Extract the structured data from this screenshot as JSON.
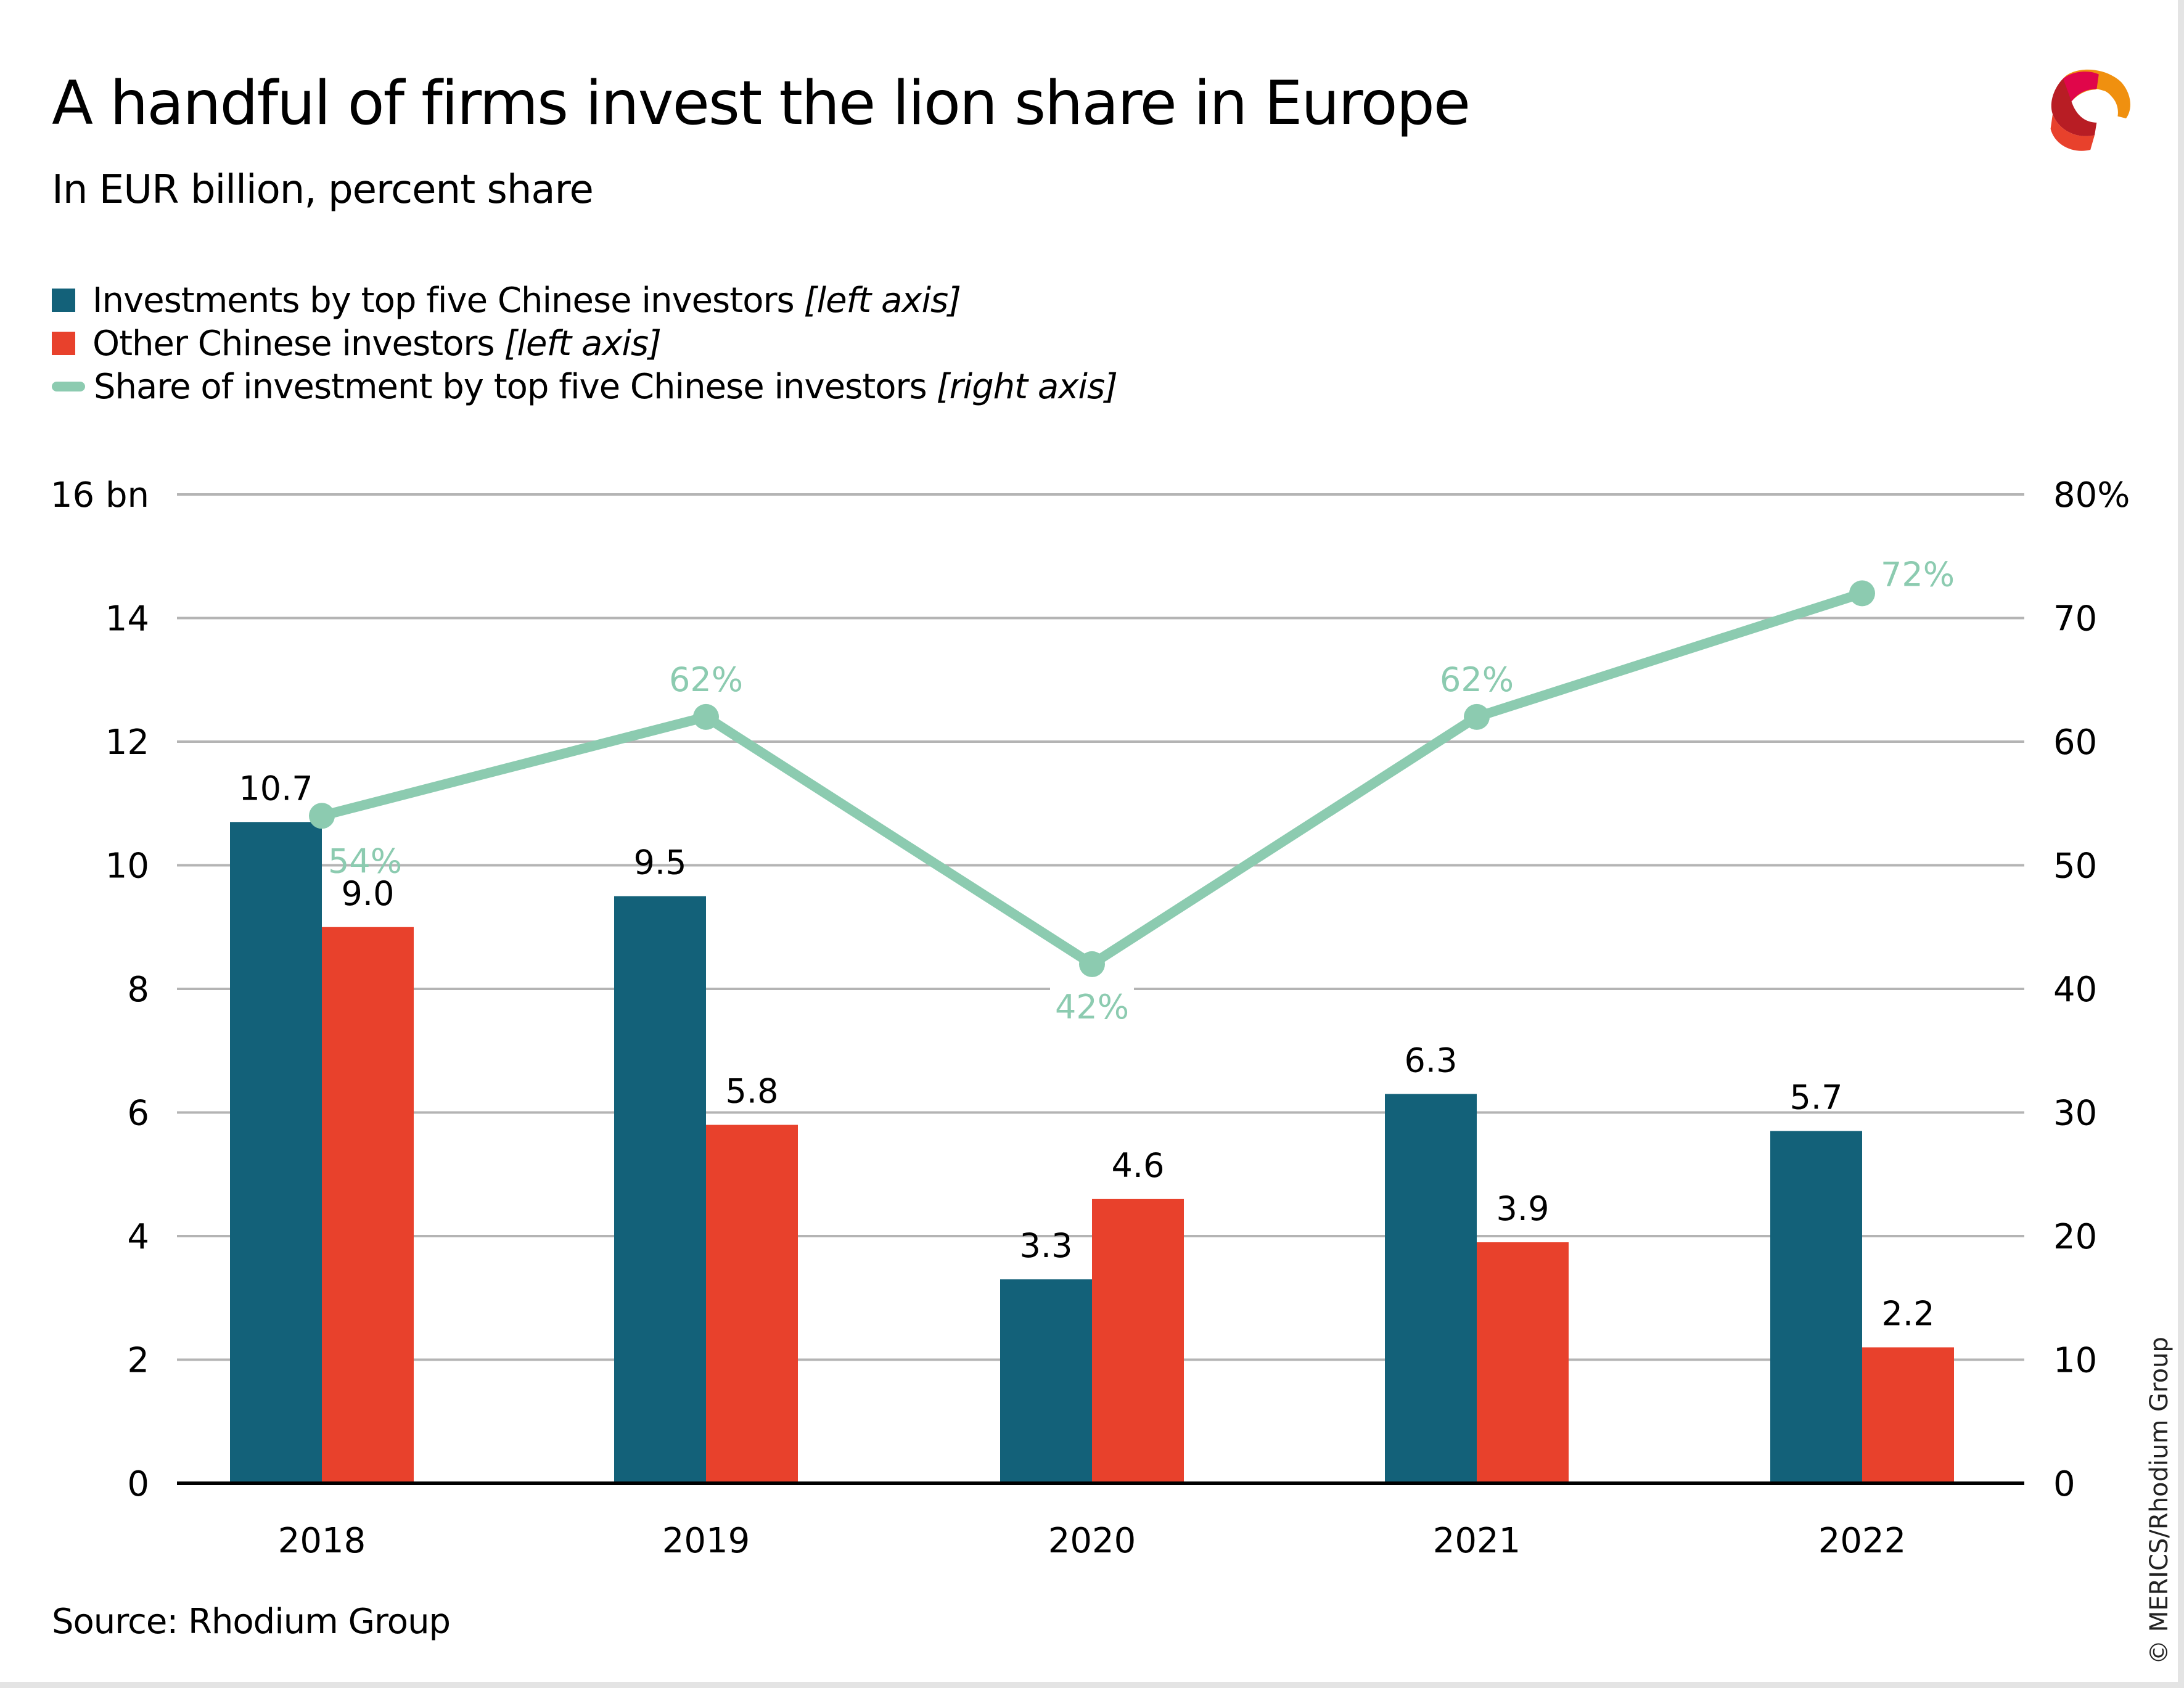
{
  "header": {
    "title": "A handful of firms invest the lion share in Europe",
    "subtitle": "In EUR billion, percent share"
  },
  "legend": [
    {
      "label": "Investments by top five Chinese investors",
      "note": "[left axis]",
      "marker": "square",
      "color": "#136179"
    },
    {
      "label": "Other Chinese investors",
      "note": "[left axis]",
      "marker": "square",
      "color": "#e8412c"
    },
    {
      "label": "Share of investment by top five Chinese investors",
      "note": "[right axis]",
      "marker": "line",
      "color": "#8ccbb0"
    }
  ],
  "footer": {
    "source": "Source: Rhodium Group",
    "credit": "© MERICS/Rhodium Group"
  },
  "logo": {
    "icon": "merics-ribbon-logo-icon"
  },
  "chart_data": {
    "type": "bar",
    "title": "A handful of firms invest the lion share in Europe",
    "subtitle": "In EUR billion, percent share",
    "xlabel": "",
    "ylabel": "EUR billion",
    "y2label": "Percent share",
    "categories": [
      "2018",
      "2019",
      "2020",
      "2021",
      "2022"
    ],
    "ylim": [
      0,
      16
    ],
    "y2lim": [
      0,
      80
    ],
    "yticks": [
      0,
      2,
      4,
      6,
      8,
      10,
      12,
      14,
      16
    ],
    "ytick_labels": [
      "0",
      "2",
      "4",
      "6",
      "8",
      "10",
      "12",
      "14",
      "16 bn"
    ],
    "y2ticks": [
      0,
      10,
      20,
      30,
      40,
      50,
      60,
      70,
      80
    ],
    "y2tick_labels": [
      "0",
      "10",
      "20",
      "30",
      "40",
      "50",
      "60",
      "70",
      "80%"
    ],
    "grid": true,
    "legend_position": "top-left",
    "series": [
      {
        "name": "Investments by top five Chinese investors",
        "type": "bar",
        "axis": "left",
        "color": "#136179",
        "values": [
          10.7,
          9.5,
          3.3,
          6.3,
          5.7
        ],
        "labels": [
          "10.7",
          "9.5",
          "3.3",
          "6.3",
          "5.7"
        ]
      },
      {
        "name": "Other Chinese investors",
        "type": "bar",
        "axis": "left",
        "color": "#e8412c",
        "values": [
          9.0,
          5.8,
          4.6,
          3.9,
          2.2
        ],
        "labels": [
          "9.0",
          "5.8",
          "4.6",
          "3.9",
          "2.2"
        ]
      },
      {
        "name": "Share of investment by top five Chinese investors",
        "type": "line",
        "axis": "right",
        "color": "#8ccbb0",
        "values": [
          54,
          62,
          42,
          62,
          72
        ],
        "labels": [
          "54%",
          "62%",
          "42%",
          "62%",
          "72%"
        ],
        "label_positions": [
          "below-right",
          "above",
          "below",
          "above",
          "above-right"
        ]
      }
    ]
  }
}
